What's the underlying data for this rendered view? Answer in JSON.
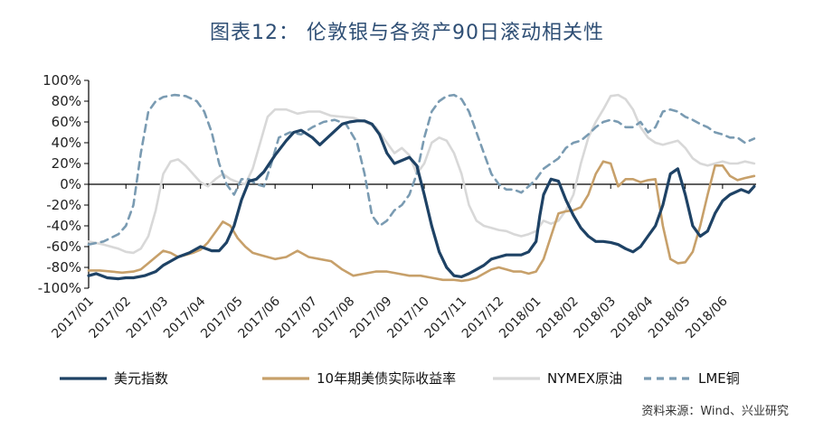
{
  "chart_data": {
    "type": "line",
    "title": "图表12： 伦敦银与各资产90日滚动相关性",
    "xlabel": "",
    "ylabel": "",
    "ylim": [
      -100,
      100
    ],
    "yticks": [
      "100%",
      "80%",
      "60%",
      "40%",
      "20%",
      "0%",
      "-20%",
      "-40%",
      "-60%",
      "-80%",
      "-100%"
    ],
    "ytick_values": [
      100,
      80,
      60,
      40,
      20,
      0,
      -20,
      -40,
      -60,
      -80,
      -100
    ],
    "categories": [
      "2017/01",
      "2017/02",
      "2017/03",
      "2017/04",
      "2017/05",
      "2017/06",
      "2017/07",
      "2017/08",
      "2017/09",
      "2017/10",
      "2017/11",
      "2017/12",
      "2018/01",
      "2018/02",
      "2018/03",
      "2018/04",
      "2018/05",
      "2018/06"
    ],
    "x_range": [
      0,
      17.9
    ],
    "legend_position": "bottom",
    "series": [
      {
        "name": "美元指数",
        "color": "#1e4265",
        "dash": "",
        "width": 3.2,
        "x": [
          0,
          0.2,
          0.5,
          0.8,
          1.0,
          1.2,
          1.5,
          1.8,
          2.0,
          2.2,
          2.4,
          2.7,
          3.0,
          3.3,
          3.5,
          3.7,
          3.9,
          4.1,
          4.3,
          4.5,
          4.7,
          5.0,
          5.3,
          5.5,
          5.7,
          6.0,
          6.2,
          6.5,
          6.8,
          7.0,
          7.2,
          7.4,
          7.6,
          7.8,
          8.0,
          8.2,
          8.4,
          8.6,
          8.8,
          9.0,
          9.2,
          9.4,
          9.6,
          9.8,
          10.0,
          10.2,
          10.4,
          10.6,
          10.8,
          11.0,
          11.2,
          11.4,
          11.6,
          11.8,
          12.0,
          12.1,
          12.2,
          12.4,
          12.6,
          12.8,
          13.0,
          13.2,
          13.4,
          13.6,
          13.8,
          14.0,
          14.2,
          14.4,
          14.6,
          14.8,
          15.0,
          15.2,
          15.4,
          15.6,
          15.8,
          16.0,
          16.2,
          16.4,
          16.6,
          16.8,
          17.0,
          17.2,
          17.5,
          17.7,
          17.85
        ],
        "values": [
          -88,
          -86,
          -90,
          -91,
          -90,
          -90,
          -88,
          -84,
          -78,
          -74,
          -70,
          -66,
          -60,
          -64,
          -64,
          -56,
          -40,
          -15,
          3,
          5,
          12,
          28,
          42,
          50,
          52,
          45,
          38,
          48,
          58,
          60,
          61,
          61,
          58,
          48,
          30,
          20,
          23,
          26,
          18,
          -10,
          -40,
          -65,
          -80,
          -88,
          -89,
          -86,
          -82,
          -78,
          -72,
          -70,
          -68,
          -68,
          -68,
          -65,
          -55,
          -30,
          -10,
          5,
          3,
          -15,
          -30,
          -42,
          -50,
          -55,
          -55,
          -56,
          -58,
          -62,
          -65,
          -60,
          -50,
          -40,
          -20,
          10,
          15,
          -10,
          -40,
          -50,
          -45,
          -28,
          -16,
          -10,
          -5,
          -8,
          -2
        ]
      },
      {
        "name": "10年期美债实际收益率",
        "color": "#c7a06a",
        "dash": "",
        "width": 2.6,
        "x": [
          0,
          0.3,
          0.6,
          0.9,
          1.2,
          1.4,
          1.6,
          1.8,
          2.0,
          2.2,
          2.4,
          2.6,
          2.8,
          3.0,
          3.2,
          3.4,
          3.6,
          3.8,
          4.0,
          4.2,
          4.4,
          4.6,
          4.8,
          5.0,
          5.3,
          5.6,
          5.9,
          6.2,
          6.5,
          6.8,
          7.1,
          7.4,
          7.7,
          8.0,
          8.3,
          8.6,
          8.9,
          9.2,
          9.5,
          9.8,
          10.0,
          10.2,
          10.4,
          10.6,
          10.8,
          11.0,
          11.2,
          11.4,
          11.6,
          11.8,
          12.0,
          12.2,
          12.4,
          12.6,
          12.8,
          13.0,
          13.2,
          13.4,
          13.6,
          13.8,
          14.0,
          14.2,
          14.4,
          14.6,
          14.8,
          15.0,
          15.2,
          15.4,
          15.6,
          15.8,
          16.0,
          16.2,
          16.4,
          16.6,
          16.8,
          17.0,
          17.2,
          17.4,
          17.6,
          17.85
        ],
        "values": [
          -83,
          -83,
          -84,
          -85,
          -84,
          -82,
          -76,
          -70,
          -64,
          -66,
          -70,
          -68,
          -66,
          -63,
          -56,
          -46,
          -36,
          -40,
          -52,
          -60,
          -66,
          -68,
          -70,
          -72,
          -70,
          -64,
          -70,
          -72,
          -74,
          -82,
          -88,
          -86,
          -84,
          -84,
          -86,
          -88,
          -88,
          -90,
          -92,
          -92,
          -93,
          -92,
          -90,
          -86,
          -82,
          -80,
          -82,
          -84,
          -84,
          -86,
          -84,
          -72,
          -50,
          -28,
          -26,
          -25,
          -22,
          -10,
          10,
          22,
          20,
          -2,
          5,
          5,
          2,
          4,
          5,
          -40,
          -72,
          -76,
          -75,
          -65,
          -40,
          -10,
          18,
          18,
          8,
          4,
          6,
          8
        ]
      },
      {
        "name": "NYMEX原油",
        "color": "#d8d8d8",
        "dash": "",
        "width": 2.6,
        "x": [
          0,
          0.4,
          0.8,
          1.0,
          1.2,
          1.4,
          1.6,
          1.8,
          2.0,
          2.2,
          2.4,
          2.6,
          2.8,
          3.0,
          3.2,
          3.4,
          3.6,
          3.8,
          4.0,
          4.2,
          4.4,
          4.6,
          4.8,
          5.0,
          5.3,
          5.6,
          5.9,
          6.2,
          6.5,
          6.8,
          7.1,
          7.4,
          7.7,
          8.0,
          8.2,
          8.4,
          8.6,
          8.8,
          9.0,
          9.2,
          9.4,
          9.6,
          9.8,
          10.0,
          10.2,
          10.4,
          10.6,
          10.8,
          11.0,
          11.2,
          11.4,
          11.6,
          11.8,
          12.0,
          12.2,
          12.4,
          12.6,
          12.8,
          13.0,
          13.2,
          13.4,
          13.6,
          13.8,
          14.0,
          14.2,
          14.4,
          14.6,
          14.8,
          15.0,
          15.2,
          15.4,
          15.6,
          15.8,
          16.0,
          16.2,
          16.4,
          16.6,
          16.8,
          17.0,
          17.2,
          17.4,
          17.6,
          17.85
        ],
        "values": [
          -55,
          -58,
          -62,
          -65,
          -66,
          -62,
          -50,
          -25,
          10,
          22,
          24,
          18,
          10,
          2,
          -2,
          5,
          10,
          5,
          2,
          0,
          15,
          40,
          65,
          72,
          72,
          68,
          70,
          70,
          66,
          65,
          64,
          60,
          55,
          40,
          30,
          35,
          28,
          10,
          20,
          40,
          45,
          42,
          30,
          10,
          -20,
          -35,
          -40,
          -42,
          -44,
          -45,
          -48,
          -50,
          -48,
          -45,
          -35,
          -38,
          -35,
          -25,
          -10,
          20,
          45,
          60,
          72,
          85,
          86,
          82,
          72,
          55,
          45,
          40,
          38,
          40,
          42,
          35,
          25,
          20,
          18,
          20,
          22,
          20,
          20,
          22,
          20
        ]
      },
      {
        "name": "LME铜",
        "color": "#7a9bb2",
        "dash": "8,6",
        "width": 2.6,
        "x": [
          0,
          0.4,
          0.8,
          1.0,
          1.2,
          1.4,
          1.6,
          1.8,
          2.0,
          2.3,
          2.6,
          2.9,
          3.1,
          3.3,
          3.5,
          3.7,
          3.9,
          4.1,
          4.3,
          4.5,
          4.7,
          4.9,
          5.1,
          5.4,
          5.7,
          6.0,
          6.3,
          6.6,
          6.9,
          7.2,
          7.4,
          7.6,
          7.8,
          8.0,
          8.2,
          8.4,
          8.6,
          8.8,
          9.0,
          9.2,
          9.4,
          9.6,
          9.8,
          10.0,
          10.2,
          10.4,
          10.6,
          10.8,
          11.0,
          11.2,
          11.4,
          11.6,
          11.8,
          12.0,
          12.2,
          12.4,
          12.6,
          12.8,
          13.0,
          13.2,
          13.4,
          13.6,
          13.8,
          14.0,
          14.2,
          14.4,
          14.6,
          14.8,
          15.0,
          15.2,
          15.4,
          15.6,
          15.8,
          16.0,
          16.2,
          16.4,
          16.6,
          16.8,
          17.0,
          17.2,
          17.4,
          17.6,
          17.85
        ],
        "values": [
          -58,
          -55,
          -48,
          -40,
          -20,
          30,
          70,
          80,
          84,
          86,
          85,
          80,
          70,
          50,
          20,
          0,
          -10,
          5,
          5,
          0,
          -2,
          20,
          45,
          50,
          48,
          55,
          60,
          62,
          58,
          40,
          10,
          -30,
          -40,
          -35,
          -25,
          -20,
          -10,
          10,
          45,
          70,
          80,
          85,
          86,
          82,
          70,
          50,
          30,
          10,
          0,
          -5,
          -5,
          -8,
          -2,
          5,
          15,
          20,
          25,
          35,
          40,
          42,
          48,
          55,
          60,
          62,
          60,
          55,
          55,
          60,
          50,
          55,
          70,
          72,
          70,
          65,
          62,
          58,
          55,
          50,
          48,
          45,
          45,
          40,
          44
        ]
      }
    ]
  }
}
